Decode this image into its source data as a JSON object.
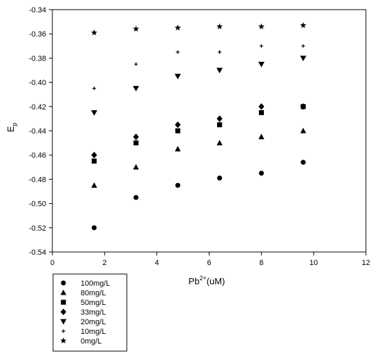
{
  "chart_data": {
    "type": "scatter",
    "title": "",
    "xlabel": {
      "base": "Pb",
      "superscript": "2+",
      "suffix": "(uM)"
    },
    "ylabel": {
      "base": "E",
      "subscript": "p"
    },
    "xlim": [
      0,
      12
    ],
    "ylim": [
      -0.54,
      -0.34
    ],
    "x_ticks": [
      {
        "value": 0,
        "label": "0"
      },
      {
        "value": 2,
        "label": "2"
      },
      {
        "value": 4,
        "label": "4"
      },
      {
        "value": 6,
        "label": "6"
      },
      {
        "value": 8,
        "label": "8"
      },
      {
        "value": 10,
        "label": "10"
      },
      {
        "value": 12,
        "label": "12"
      }
    ],
    "y_ticks": [
      {
        "value": -0.34,
        "label": "-0.34"
      },
      {
        "value": -0.36,
        "label": "-0.36"
      },
      {
        "value": -0.38,
        "label": "-0.38"
      },
      {
        "value": -0.4,
        "label": "-0.40"
      },
      {
        "value": -0.42,
        "label": "-0.42"
      },
      {
        "value": -0.44,
        "label": "-0.44"
      },
      {
        "value": -0.46,
        "label": "-0.46"
      },
      {
        "value": -0.48,
        "label": "-0.48"
      },
      {
        "value": -0.5,
        "label": "-0.50"
      },
      {
        "value": -0.52,
        "label": "-0.52"
      },
      {
        "value": -0.54,
        "label": "-0.54"
      }
    ],
    "grid": false,
    "legend_position": "below-left",
    "x": [
      1.6,
      3.2,
      4.8,
      6.4,
      8.0,
      9.6
    ],
    "series": [
      {
        "name": "100mg/L",
        "marker": "circle",
        "values": [
          -0.52,
          -0.495,
          -0.485,
          -0.479,
          -0.475,
          -0.466
        ]
      },
      {
        "name": "80mg/L",
        "marker": "triangle",
        "values": [
          -0.485,
          -0.47,
          -0.455,
          -0.45,
          -0.445,
          -0.44
        ]
      },
      {
        "name": "50mg/L",
        "marker": "square",
        "values": [
          -0.465,
          -0.45,
          -0.44,
          -0.435,
          -0.425,
          -0.42
        ]
      },
      {
        "name": "33mg/L",
        "marker": "diamond",
        "values": [
          -0.46,
          -0.445,
          -0.435,
          -0.43,
          -0.42,
          -0.42
        ]
      },
      {
        "name": "20mg/L",
        "marker": "triangle-down",
        "values": [
          -0.425,
          -0.405,
          -0.395,
          -0.39,
          -0.385,
          -0.38
        ]
      },
      {
        "name": "10mg/L",
        "marker": "plus",
        "values": [
          -0.405,
          -0.385,
          -0.375,
          -0.375,
          -0.37,
          -0.37
        ]
      },
      {
        "name": "0mg/L",
        "marker": "star",
        "values": [
          -0.359,
          -0.356,
          -0.355,
          -0.354,
          -0.354,
          -0.353
        ]
      }
    ],
    "marker_color": "#000000"
  }
}
